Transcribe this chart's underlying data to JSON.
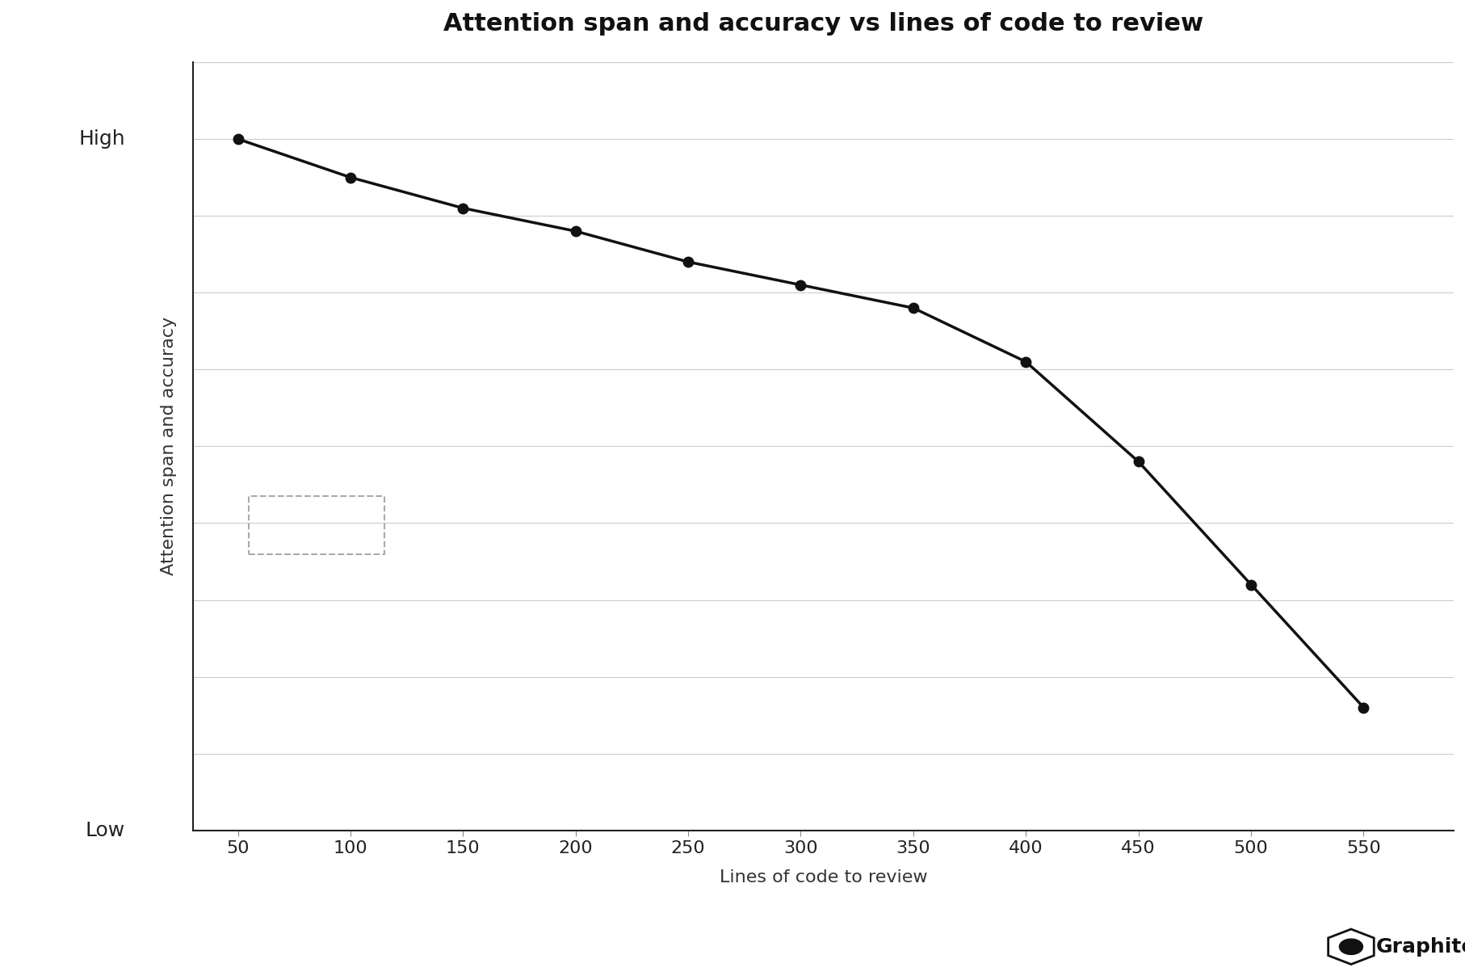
{
  "title": "Attention span and accuracy vs lines of code to review",
  "xlabel": "Lines of code to review",
  "ylabel": "Attention span and accuracy",
  "x_values": [
    50,
    100,
    150,
    200,
    250,
    300,
    350,
    400,
    450,
    500,
    550
  ],
  "y_values": [
    9.0,
    8.5,
    8.1,
    7.8,
    7.4,
    7.1,
    6.8,
    6.1,
    4.8,
    3.2,
    1.6
  ],
  "xlim": [
    30,
    590
  ],
  "ylim": [
    0.0,
    10.0
  ],
  "xticks": [
    50,
    100,
    150,
    200,
    250,
    300,
    350,
    400,
    450,
    500,
    550
  ],
  "num_gridlines": 10,
  "line_color": "#111111",
  "marker_color": "#111111",
  "background_color": "#ffffff",
  "grid_color": "#cccccc",
  "title_fontsize": 22,
  "label_fontsize": 16,
  "tick_fontsize": 16,
  "marker_size": 9,
  "line_width": 2.5,
  "watermark_text": "Graphite",
  "low_label": "Low",
  "high_label": "High",
  "high_y": 9.0,
  "low_y": 0.0
}
